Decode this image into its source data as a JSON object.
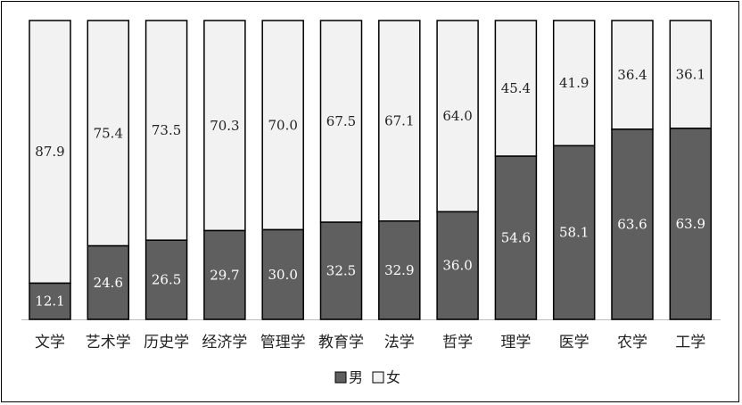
{
  "chart_data": {
    "type": "bar",
    "stacked": "100%",
    "categories": [
      "文学",
      "艺术学",
      "历史学",
      "经济学",
      "管理学",
      "教育学",
      "法学",
      "哲学",
      "理学",
      "医学",
      "农学",
      "工学"
    ],
    "series": [
      {
        "name": "男",
        "values": [
          12.1,
          24.6,
          26.5,
          29.7,
          30.0,
          32.5,
          32.9,
          36.0,
          54.6,
          58.1,
          63.6,
          63.9
        ],
        "color": "#5f5f5f"
      },
      {
        "name": "女",
        "values": [
          87.9,
          75.4,
          73.5,
          70.3,
          70.0,
          67.5,
          67.1,
          64.0,
          45.4,
          41.9,
          36.4,
          36.1
        ],
        "color": "#f2f2f2"
      }
    ],
    "value_labels": {
      "男": [
        "12.1",
        "24.6",
        "26.5",
        "29.7",
        "30.0",
        "32.5",
        "32.9",
        "36.0",
        "54.6",
        "58.1",
        "63.6",
        "63.9"
      ],
      "女": [
        "87.9",
        "75.4",
        "73.5",
        "70.3",
        "70.0",
        "67.5",
        "67.1",
        "64.0",
        "45.4",
        "41.9",
        "36.4",
        "36.1"
      ]
    },
    "title": "",
    "xlabel": "",
    "ylabel": "",
    "ylim": [
      0,
      100
    ],
    "grid": false,
    "legend_position": "bottom"
  }
}
